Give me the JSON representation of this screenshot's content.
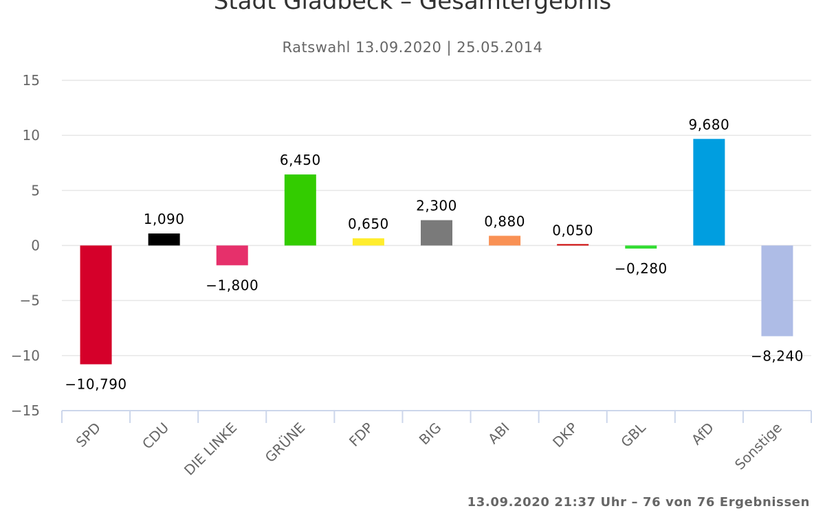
{
  "chart_data": {
    "type": "bar",
    "title": "Stadt Gladbeck – Gesamtergebnis",
    "subtitle": "Ratswahl 13.09.2020 | 25.05.2014",
    "categories": [
      "SPD",
      "CDU",
      "DIE LINKE",
      "GRÜNE",
      "FDP",
      "BIG",
      "ABI",
      "DKP",
      "GBL",
      "AfD",
      "Sonstige"
    ],
    "values": [
      -10.79,
      1.09,
      -1.8,
      6.45,
      0.65,
      2.3,
      0.88,
      0.05,
      -0.28,
      9.68,
      -8.24
    ],
    "data_labels": [
      "−10,790",
      "1,090",
      "−1,800",
      "6,450",
      "0,650",
      "2,300",
      "0,880",
      "0,050",
      "−0,280",
      "9,680",
      "−8,240"
    ],
    "colors": [
      "#d5002a",
      "#000000",
      "#e6306b",
      "#33cc00",
      "#ffed2d",
      "#7a7a7a",
      "#f99154",
      "#cc0000",
      "#33dd33",
      "#009ee0",
      "#aebce6"
    ],
    "ylim": [
      -15,
      15
    ],
    "yticks": [
      15,
      10,
      5,
      0,
      -5,
      -10,
      -15
    ],
    "ytick_labels": [
      "15",
      "10",
      "5",
      "0",
      "−5",
      "−10",
      "−15"
    ],
    "grid": true,
    "legend": "none"
  },
  "footer": {
    "credit": "13.09.2020 21:37 Uhr – 76 von 76 Ergebnissen"
  }
}
